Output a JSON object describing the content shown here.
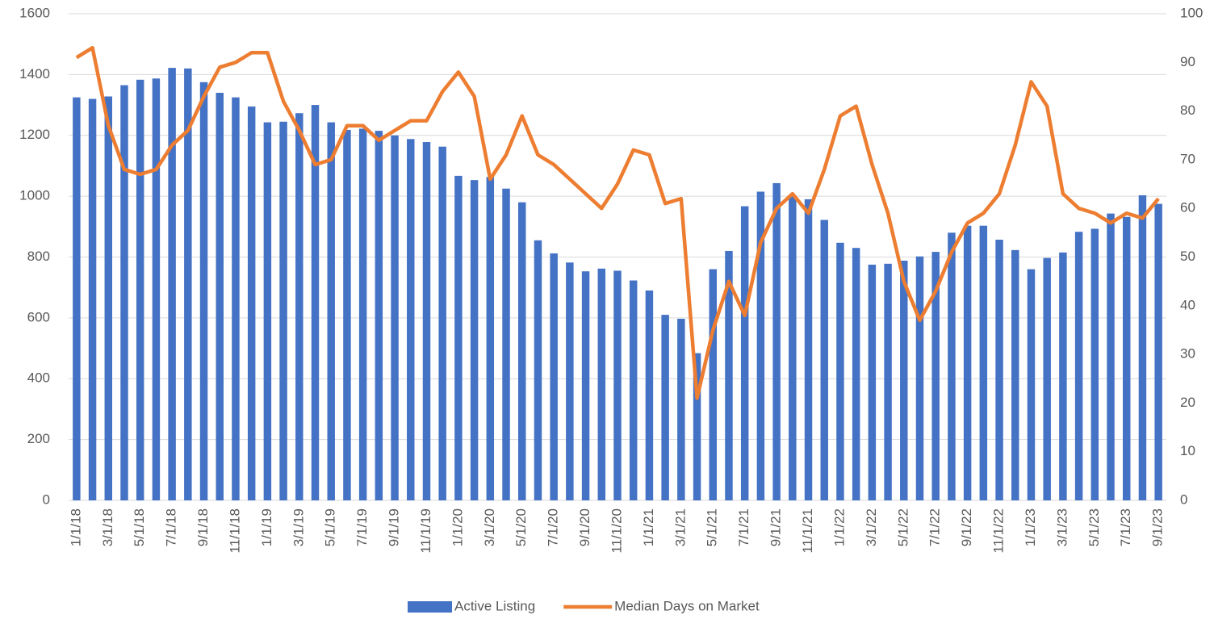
{
  "chart_data": {
    "type": "bar",
    "categories": [
      "1/1/18",
      null,
      "3/1/18",
      null,
      "5/1/18",
      null,
      "7/1/18",
      null,
      "9/1/18",
      null,
      "11/1/18",
      null,
      "1/1/19",
      null,
      "3/1/19",
      null,
      "5/1/19",
      null,
      "7/1/19",
      null,
      "9/1/19",
      null,
      "11/1/19",
      null,
      "1/1/20",
      null,
      "3/1/20",
      null,
      "5/1/20",
      null,
      "7/1/20",
      null,
      "9/1/20",
      null,
      "11/1/20",
      null,
      "1/1/21",
      null,
      "3/1/21",
      null,
      "5/1/21",
      null,
      "7/1/21",
      null,
      "9/1/21",
      null,
      "11/1/21",
      null,
      "1/1/22",
      null,
      "3/1/22",
      null,
      "5/1/22",
      null,
      "7/1/22",
      null,
      "9/1/22",
      null,
      "11/1/22",
      null,
      "1/1/23",
      null,
      "3/1/23",
      null,
      "5/1/23",
      null,
      "7/1/23",
      null,
      "9/1/23"
    ],
    "series": [
      {
        "name": "Active Listing",
        "type": "bar",
        "color": "#4472c4",
        "values": [
          1325,
          1320,
          1328,
          1365,
          1383,
          1387,
          1422,
          1420,
          1375,
          1340,
          1325,
          1295,
          1243,
          1245,
          1273,
          1300,
          1243,
          1218,
          1222,
          1215,
          1200,
          1188,
          1178,
          1163,
          1067,
          1053,
          1063,
          1025,
          980,
          855,
          812,
          782,
          753,
          762,
          755,
          723,
          690,
          610,
          597,
          484,
          760,
          820,
          967,
          1015,
          1043,
          1000,
          990,
          922,
          847,
          830,
          775,
          778,
          788,
          802,
          817,
          880,
          903,
          903,
          857,
          823,
          760,
          797,
          815,
          883,
          893,
          943,
          932,
          1003,
          975
        ]
      },
      {
        "name": "Median Days on Market",
        "type": "line",
        "axis": "y2",
        "color": "#ed7d31",
        "values": [
          91,
          93,
          77,
          68,
          67,
          68,
          73,
          76,
          83,
          89,
          90,
          92,
          92,
          82,
          76,
          69,
          70,
          77,
          77,
          74,
          76,
          78,
          78,
          84,
          88,
          83,
          66,
          71,
          79,
          71,
          69,
          66,
          63,
          60,
          65,
          72,
          71,
          61,
          62,
          21,
          35,
          45,
          38,
          53,
          60,
          63,
          59,
          68,
          79,
          81,
          69,
          59,
          45,
          37,
          43,
          51,
          57,
          59,
          63,
          73,
          86,
          81,
          63,
          60,
          59,
          57,
          59,
          58,
          62
        ]
      }
    ],
    "ylim": [
      0,
      1600
    ],
    "yticks": [
      0,
      200,
      400,
      600,
      800,
      1000,
      1200,
      1400,
      1600
    ],
    "y2lim": [
      0,
      100
    ],
    "y2ticks": [
      0,
      10,
      20,
      30,
      40,
      50,
      60,
      70,
      80,
      90,
      100
    ],
    "grid": true,
    "legend": "bottom"
  }
}
